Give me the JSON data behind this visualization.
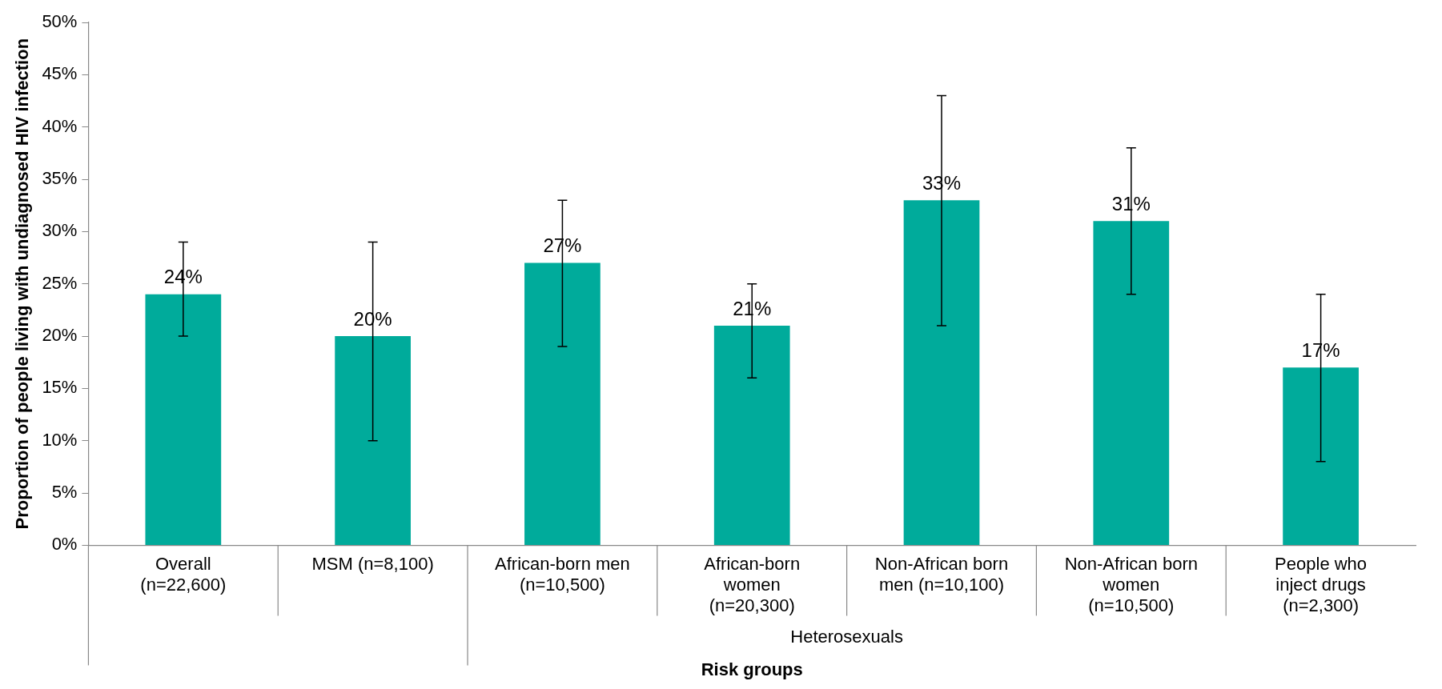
{
  "chart_data": {
    "type": "bar",
    "xlabel": "Risk groups",
    "ylabel": "Proportion of people living with undiagnosed HIV infection",
    "categories": [
      "Overall (n=22,600)",
      "MSM (n=8,100)",
      "African-born men (n=10,500)",
      "African-born women (n=20,300)",
      "Non-African born men (n=10,100)",
      "Non-African born women (n=10,500)",
      "People who inject drugs (n=2,300)"
    ],
    "values": [
      24,
      20,
      27,
      21,
      33,
      31,
      17
    ],
    "value_labels": [
      "24%",
      "20%",
      "27%",
      "21%",
      "33%",
      "31%",
      "17%"
    ],
    "errors": [
      [
        20,
        29
      ],
      [
        10,
        29
      ],
      [
        19,
        33
      ],
      [
        16,
        25
      ],
      [
        21,
        43
      ],
      [
        24,
        38
      ],
      [
        8,
        24
      ]
    ],
    "color": "#00ab9b",
    "ylim": [
      0,
      50
    ],
    "yticks": [
      {
        "value": 0,
        "label": "0%"
      },
      {
        "value": 5,
        "label": "5%"
      },
      {
        "value": 10,
        "label": "10%"
      },
      {
        "value": 15,
        "label": "15%"
      },
      {
        "value": 20,
        "label": "20%"
      },
      {
        "value": 25,
        "label": "25%"
      },
      {
        "value": 30,
        "label": "30%"
      },
      {
        "value": 35,
        "label": "35%"
      },
      {
        "value": 40,
        "label": "40%"
      },
      {
        "value": 45,
        "label": "45%"
      },
      {
        "value": 50,
        "label": "50%"
      }
    ],
    "annotations": [
      "Heterosexuals"
    ],
    "grid": false,
    "legend": false
  }
}
